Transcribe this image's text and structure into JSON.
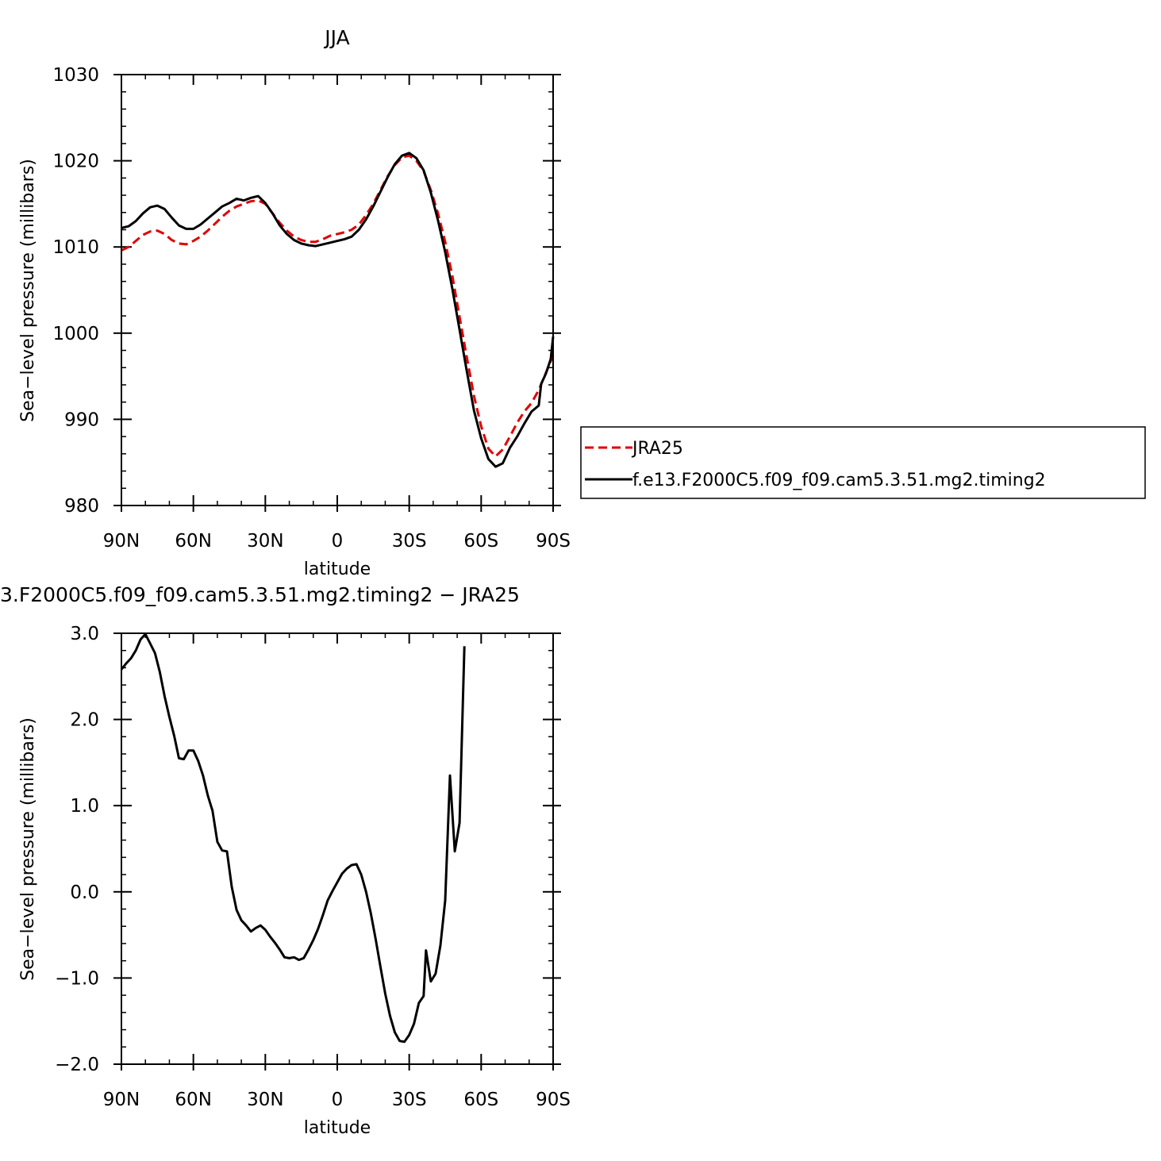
{
  "chart_data": [
    {
      "type": "line",
      "title": "JJA",
      "xlabel": "latitude",
      "ylabel": "Sea−level pressure (millibars)",
      "xlim": [
        90,
        -90
      ],
      "ylim": [
        980,
        1030
      ],
      "x_ticks": [
        90,
        60,
        30,
        0,
        -30,
        -60,
        -90
      ],
      "x_tick_labels": [
        "90N",
        "60N",
        "30N",
        "0",
        "30S",
        "60S",
        "90S"
      ],
      "y_ticks": [
        980,
        990,
        1000,
        1010,
        1020,
        1030
      ],
      "y_tick_labels": [
        "980",
        "990",
        "1000",
        "1010",
        "1020",
        "1030"
      ],
      "legend_position": "right",
      "series": [
        {
          "name": "JRA25",
          "color": "#e00000",
          "style": "dashed",
          "points": [
            [
              90,
              1009.6
            ],
            [
              87,
              1010.0
            ],
            [
              84,
              1010.7
            ],
            [
              81,
              1011.4
            ],
            [
              78,
              1011.8
            ],
            [
              75,
              1011.9
            ],
            [
              72,
              1011.5
            ],
            [
              69,
              1010.8
            ],
            [
              66,
              1010.4
            ],
            [
              63,
              1010.3
            ],
            [
              60,
              1010.7
            ],
            [
              57,
              1011.2
            ],
            [
              54,
              1011.9
            ],
            [
              51,
              1012.7
            ],
            [
              48,
              1013.5
            ],
            [
              45,
              1014.2
            ],
            [
              42,
              1014.7
            ],
            [
              39,
              1015.0
            ],
            [
              36,
              1015.3
            ],
            [
              33,
              1015.4
            ],
            [
              30,
              1015.0
            ],
            [
              27,
              1013.9
            ],
            [
              24,
              1012.8
            ],
            [
              21,
              1011.9
            ],
            [
              18,
              1011.2
            ],
            [
              15,
              1010.8
            ],
            [
              12,
              1010.6
            ],
            [
              9,
              1010.6
            ],
            [
              6,
              1010.9
            ],
            [
              3,
              1011.3
            ],
            [
              0,
              1011.5
            ],
            [
              -3,
              1011.7
            ],
            [
              -6,
              1012.0
            ],
            [
              -9,
              1012.6
            ],
            [
              -12,
              1013.7
            ],
            [
              -15,
              1015.0
            ],
            [
              -18,
              1016.6
            ],
            [
              -21,
              1018.2
            ],
            [
              -24,
              1019.5
            ],
            [
              -27,
              1020.4
            ],
            [
              -30,
              1020.6
            ],
            [
              -33,
              1020.0
            ],
            [
              -36,
              1018.8
            ],
            [
              -39,
              1016.6
            ],
            [
              -42,
              1013.9
            ],
            [
              -45,
              1010.6
            ],
            [
              -48,
              1006.6
            ],
            [
              -51,
              1001.9
            ],
            [
              -54,
              997.2
            ],
            [
              -57,
              992.7
            ],
            [
              -60,
              989.2
            ],
            [
              -63,
              986.6
            ],
            [
              -66,
              985.7
            ],
            [
              -69,
              986.5
            ],
            [
              -72,
              988.0
            ],
            [
              -75,
              989.6
            ],
            [
              -78,
              990.9
            ],
            [
              -81,
              991.9
            ],
            [
              -84,
              993.4
            ],
            [
              -87,
              995.4
            ],
            [
              -90,
              997.4
            ]
          ]
        },
        {
          "name": "f.e13.F2000C5.f09_f09.cam5.3.51.mg2.timing2",
          "color": "#000000",
          "style": "solid",
          "points": [
            [
              90,
              1012.2
            ],
            [
              87,
              1012.4
            ],
            [
              84,
              1013.0
            ],
            [
              81,
              1013.9
            ],
            [
              78,
              1014.6
            ],
            [
              75,
              1014.8
            ],
            [
              72,
              1014.4
            ],
            [
              69,
              1013.4
            ],
            [
              66,
              1012.5
            ],
            [
              63,
              1012.1
            ],
            [
              60,
              1012.1
            ],
            [
              57,
              1012.6
            ],
            [
              54,
              1013.3
            ],
            [
              51,
              1014.0
            ],
            [
              48,
              1014.7
            ],
            [
              45,
              1015.1
            ],
            [
              42,
              1015.6
            ],
            [
              39,
              1015.4
            ],
            [
              36,
              1015.7
            ],
            [
              33,
              1015.9
            ],
            [
              30,
              1015.1
            ],
            [
              27,
              1013.9
            ],
            [
              24,
              1012.5
            ],
            [
              21,
              1011.5
            ],
            [
              18,
              1010.8
            ],
            [
              15,
              1010.4
            ],
            [
              12,
              1010.2
            ],
            [
              9,
              1010.1
            ],
            [
              6,
              1010.3
            ],
            [
              3,
              1010.5
            ],
            [
              0,
              1010.7
            ],
            [
              -3,
              1010.9
            ],
            [
              -6,
              1011.2
            ],
            [
              -9,
              1012.0
            ],
            [
              -12,
              1013.2
            ],
            [
              -15,
              1014.7
            ],
            [
              -18,
              1016.4
            ],
            [
              -21,
              1018.1
            ],
            [
              -24,
              1019.6
            ],
            [
              -27,
              1020.6
            ],
            [
              -30,
              1020.9
            ],
            [
              -33,
              1020.3
            ],
            [
              -36,
              1018.9
            ],
            [
              -39,
              1016.3
            ],
            [
              -42,
              1013.1
            ],
            [
              -45,
              1009.4
            ],
            [
              -48,
              1005.1
            ],
            [
              -51,
              1000.4
            ],
            [
              -54,
              995.6
            ],
            [
              -57,
              991.0
            ],
            [
              -60,
              987.8
            ],
            [
              -63,
              985.4
            ],
            [
              -66,
              984.5
            ],
            [
              -69,
              984.9
            ],
            [
              -72,
              986.7
            ],
            [
              -75,
              988.0
            ],
            [
              -78,
              989.5
            ],
            [
              -81,
              990.9
            ],
            [
              -84,
              991.6
            ],
            [
              -85,
              994.1
            ],
            [
              -87,
              995.3
            ],
            [
              -89,
              997.0
            ],
            [
              -90,
              999.6
            ]
          ]
        }
      ]
    },
    {
      "type": "line",
      "title": "3.F2000C5.f09_f09.cam5.3.51.mg2.timing2 − JRA25",
      "xlabel": "latitude",
      "ylabel": "Sea−level pressure (millibars)",
      "xlim": [
        90,
        -90
      ],
      "ylim": [
        -2.0,
        3.0
      ],
      "x_ticks": [
        90,
        60,
        30,
        0,
        -30,
        -60,
        -90
      ],
      "x_tick_labels": [
        "90N",
        "60N",
        "30N",
        "0",
        "30S",
        "60S",
        "90S"
      ],
      "y_ticks": [
        -2.0,
        -1.0,
        0.0,
        1.0,
        2.0,
        3.0
      ],
      "y_tick_labels": [
        "−2.0",
        "−1.0",
        "0.0",
        "1.0",
        "2.0",
        "3.0"
      ],
      "series": [
        {
          "color": "#000000",
          "style": "solid",
          "points": [
            [
              90,
              2.58
            ],
            [
              88,
              2.65
            ],
            [
              86,
              2.71
            ],
            [
              84,
              2.8
            ],
            [
              82,
              2.93
            ],
            [
              80,
              2.99
            ],
            [
              78,
              2.88
            ],
            [
              76,
              2.77
            ],
            [
              74,
              2.55
            ],
            [
              72,
              2.27
            ],
            [
              70,
              2.03
            ],
            [
              68,
              1.81
            ],
            [
              66,
              1.55
            ],
            [
              64,
              1.54
            ],
            [
              62,
              1.64
            ],
            [
              60,
              1.64
            ],
            [
              58,
              1.52
            ],
            [
              56,
              1.35
            ],
            [
              54,
              1.12
            ],
            [
              52,
              0.94
            ],
            [
              50,
              0.58
            ],
            [
              48,
              0.48
            ],
            [
              46,
              0.47
            ],
            [
              44,
              0.06
            ],
            [
              42,
              -0.21
            ],
            [
              40,
              -0.33
            ],
            [
              38,
              -0.39
            ],
            [
              36,
              -0.46
            ],
            [
              34,
              -0.42
            ],
            [
              32,
              -0.39
            ],
            [
              30,
              -0.44
            ],
            [
              28,
              -0.52
            ],
            [
              26,
              -0.59
            ],
            [
              24,
              -0.67
            ],
            [
              22,
              -0.76
            ],
            [
              20,
              -0.77
            ],
            [
              18,
              -0.76
            ],
            [
              16,
              -0.79
            ],
            [
              14,
              -0.77
            ],
            [
              12,
              -0.67
            ],
            [
              10,
              -0.56
            ],
            [
              8,
              -0.43
            ],
            [
              6,
              -0.27
            ],
            [
              4,
              -0.1
            ],
            [
              2,
              0.01
            ],
            [
              0,
              0.11
            ],
            [
              -2,
              0.21
            ],
            [
              -4,
              0.27
            ],
            [
              -6,
              0.31
            ],
            [
              -8,
              0.32
            ],
            [
              -10,
              0.2
            ],
            [
              -12,
              0.0
            ],
            [
              -14,
              -0.25
            ],
            [
              -16,
              -0.55
            ],
            [
              -18,
              -0.87
            ],
            [
              -20,
              -1.18
            ],
            [
              -22,
              -1.44
            ],
            [
              -24,
              -1.63
            ],
            [
              -26,
              -1.73
            ],
            [
              -28,
              -1.74
            ],
            [
              -30,
              -1.66
            ],
            [
              -32,
              -1.53
            ],
            [
              -34,
              -1.29
            ],
            [
              -36,
              -1.21
            ],
            [
              -37,
              -0.68
            ],
            [
              -39,
              -1.04
            ],
            [
              -41,
              -0.95
            ],
            [
              -43,
              -0.62
            ],
            [
              -45,
              -0.1
            ],
            [
              -47,
              1.35
            ],
            [
              -49,
              0.47
            ],
            [
              -51,
              0.8
            ],
            [
              -53,
              2.85
            ]
          ]
        }
      ]
    }
  ]
}
